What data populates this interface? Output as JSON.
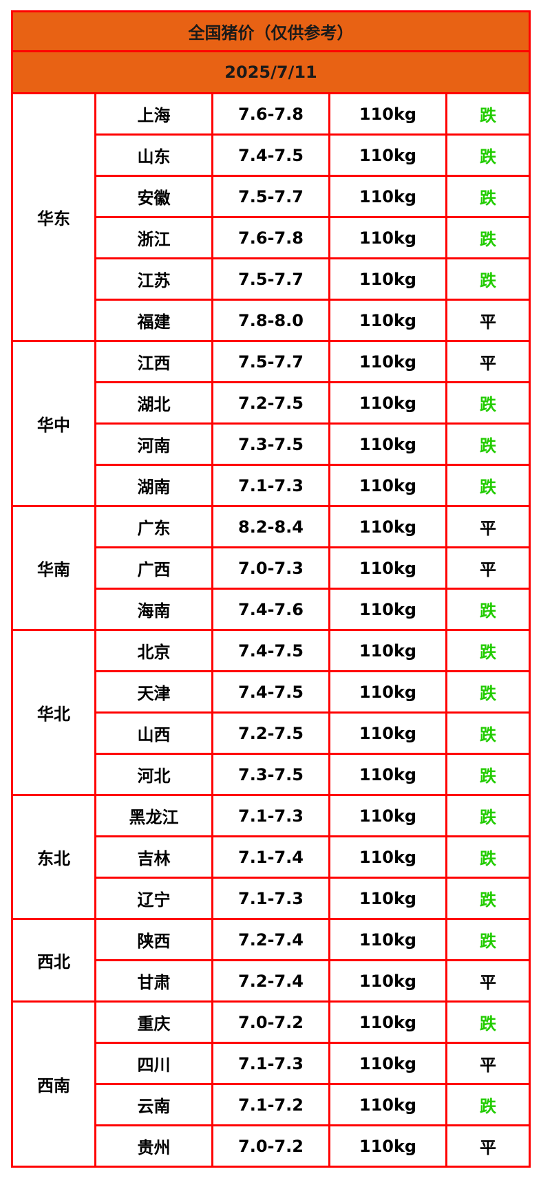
{
  "title": "全国猪价（仅供参考）",
  "date": "2025/7/11",
  "colors": {
    "header_bg": "#e86214",
    "border": "#ff0000",
    "fall": "#22cc00",
    "flat": "#000000"
  },
  "regions": [
    {
      "name": "华东",
      "rows": [
        {
          "province": "上海",
          "price": "7.6-7.8",
          "weight": "110kg",
          "change": "跌"
        },
        {
          "province": "山东",
          "price": "7.4-7.5",
          "weight": "110kg",
          "change": "跌"
        },
        {
          "province": "安徽",
          "price": "7.5-7.7",
          "weight": "110kg",
          "change": "跌"
        },
        {
          "province": "浙江",
          "price": "7.6-7.8",
          "weight": "110kg",
          "change": "跌"
        },
        {
          "province": "江苏",
          "price": "7.5-7.7",
          "weight": "110kg",
          "change": "跌"
        },
        {
          "province": "福建",
          "price": "7.8-8.0",
          "weight": "110kg",
          "change": "平"
        }
      ]
    },
    {
      "name": "华中",
      "rows": [
        {
          "province": "江西",
          "price": "7.5-7.7",
          "weight": "110kg",
          "change": "平"
        },
        {
          "province": "湖北",
          "price": "7.2-7.5",
          "weight": "110kg",
          "change": "跌"
        },
        {
          "province": "河南",
          "price": "7.3-7.5",
          "weight": "110kg",
          "change": "跌"
        },
        {
          "province": "湖南",
          "price": "7.1-7.3",
          "weight": "110kg",
          "change": "跌"
        }
      ]
    },
    {
      "name": "华南",
      "rows": [
        {
          "province": "广东",
          "price": "8.2-8.4",
          "weight": "110kg",
          "change": "平"
        },
        {
          "province": "广西",
          "price": "7.0-7.3",
          "weight": "110kg",
          "change": "平"
        },
        {
          "province": "海南",
          "price": "7.4-7.6",
          "weight": "110kg",
          "change": "跌"
        }
      ]
    },
    {
      "name": "华北",
      "rows": [
        {
          "province": "北京",
          "price": "7.4-7.5",
          "weight": "110kg",
          "change": "跌"
        },
        {
          "province": "天津",
          "price": "7.4-7.5",
          "weight": "110kg",
          "change": "跌"
        },
        {
          "province": "山西",
          "price": "7.2-7.5",
          "weight": "110kg",
          "change": "跌"
        },
        {
          "province": "河北",
          "price": "7.3-7.5",
          "weight": "110kg",
          "change": "跌"
        }
      ]
    },
    {
      "name": "东北",
      "rows": [
        {
          "province": "黑龙江",
          "price": "7.1-7.3",
          "weight": "110kg",
          "change": "跌"
        },
        {
          "province": "吉林",
          "price": "7.1-7.4",
          "weight": "110kg",
          "change": "跌"
        },
        {
          "province": "辽宁",
          "price": "7.1-7.3",
          "weight": "110kg",
          "change": "跌"
        }
      ]
    },
    {
      "name": "西北",
      "rows": [
        {
          "province": "陕西",
          "price": "7.2-7.4",
          "weight": "110kg",
          "change": "跌"
        },
        {
          "province": "甘肃",
          "price": "7.2-7.4",
          "weight": "110kg",
          "change": "平"
        }
      ]
    },
    {
      "name": "西南",
      "rows": [
        {
          "province": "重庆",
          "price": "7.0-7.2",
          "weight": "110kg",
          "change": "跌"
        },
        {
          "province": "四川",
          "price": "7.1-7.3",
          "weight": "110kg",
          "change": "平"
        },
        {
          "province": "云南",
          "price": "7.1-7.2",
          "weight": "110kg",
          "change": "跌"
        },
        {
          "province": "贵州",
          "price": "7.0-7.2",
          "weight": "110kg",
          "change": "平"
        }
      ]
    }
  ]
}
